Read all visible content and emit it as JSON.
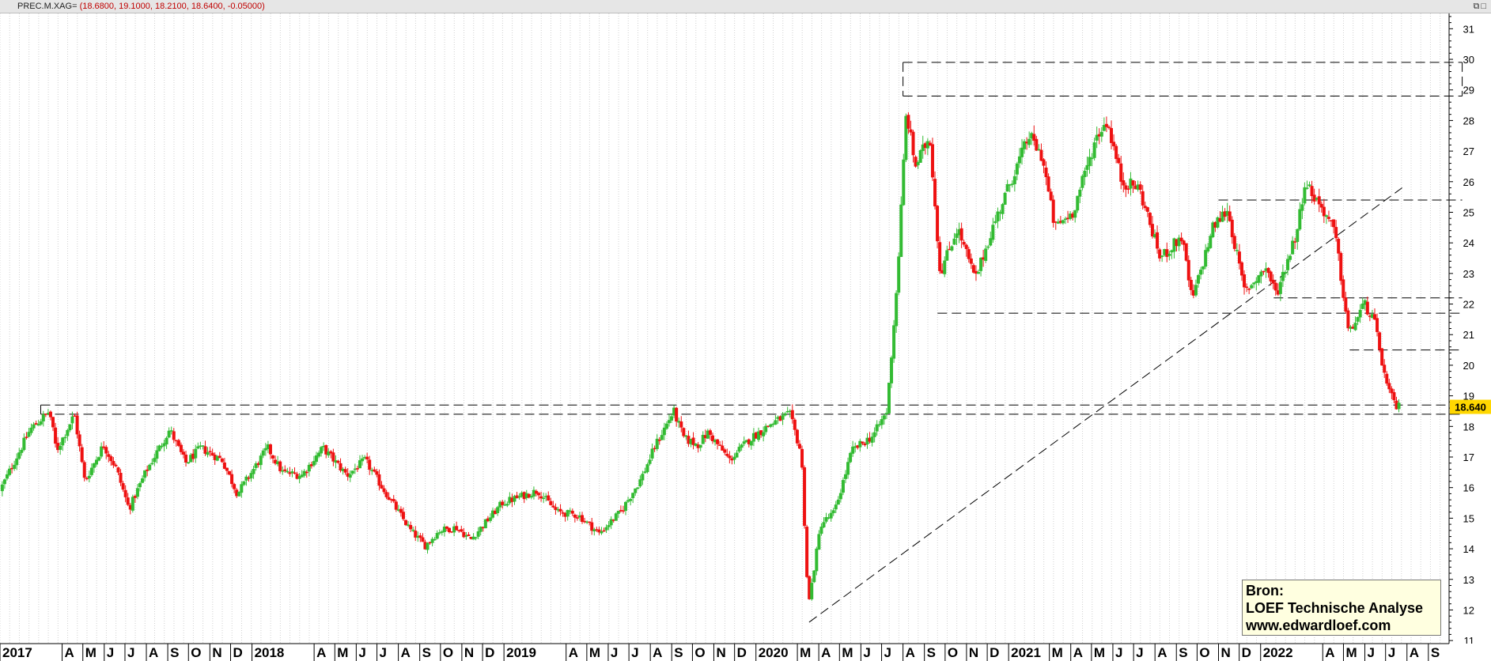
{
  "header": {
    "symbol": "PREC.M.XAG=",
    "ohlc": "(18.6800, 19.1000, 18.2100, 18.6400, -0.05000)"
  },
  "window_buttons": {
    "icons": [
      "restore-icon",
      "maximize-icon"
    ]
  },
  "source": {
    "line1": "Bron:",
    "line2": "LOEF Technische Analyse",
    "line3": "www.edwardloef.com"
  },
  "colors": {
    "up": "#33bb33",
    "down": "#ee1111",
    "last_price_badge": "#ffd700",
    "grid": "#d0d0d0"
  },
  "chart_data": {
    "type": "candlestick",
    "symbol": "PREC.M.XAG=",
    "last_price": 18.64,
    "last_price_label": "18.640",
    "y_axis": {
      "position": "right",
      "ticks": [
        11,
        12,
        13,
        14,
        15,
        16,
        17,
        18,
        19,
        20,
        21,
        22,
        23,
        24,
        25,
        26,
        27,
        28,
        29,
        30,
        31
      ],
      "range": [
        10.9,
        31.5
      ]
    },
    "x_axis": {
      "period": [
        "2017-01-01",
        "2022-09-30"
      ],
      "month_labels": [
        {
          "month": "2017-01",
          "label": "2017"
        },
        {
          "month": "2017-04",
          "label": "A"
        },
        {
          "month": "2017-05",
          "label": "M"
        },
        {
          "month": "2017-06",
          "label": "J"
        },
        {
          "month": "2017-07",
          "label": "J"
        },
        {
          "month": "2017-08",
          "label": "A"
        },
        {
          "month": "2017-09",
          "label": "S"
        },
        {
          "month": "2017-10",
          "label": "O"
        },
        {
          "month": "2017-11",
          "label": "N"
        },
        {
          "month": "2017-12",
          "label": "D"
        },
        {
          "month": "2018-01",
          "label": "2018"
        },
        {
          "month": "2018-04",
          "label": "A"
        },
        {
          "month": "2018-05",
          "label": "M"
        },
        {
          "month": "2018-06",
          "label": "J"
        },
        {
          "month": "2018-07",
          "label": "J"
        },
        {
          "month": "2018-08",
          "label": "A"
        },
        {
          "month": "2018-09",
          "label": "S"
        },
        {
          "month": "2018-10",
          "label": "O"
        },
        {
          "month": "2018-11",
          "label": "N"
        },
        {
          "month": "2018-12",
          "label": "D"
        },
        {
          "month": "2019-01",
          "label": "2019"
        },
        {
          "month": "2019-04",
          "label": "A"
        },
        {
          "month": "2019-05",
          "label": "M"
        },
        {
          "month": "2019-06",
          "label": "J"
        },
        {
          "month": "2019-07",
          "label": "J"
        },
        {
          "month": "2019-08",
          "label": "A"
        },
        {
          "month": "2019-09",
          "label": "S"
        },
        {
          "month": "2019-10",
          "label": "O"
        },
        {
          "month": "2019-11",
          "label": "N"
        },
        {
          "month": "2019-12",
          "label": "D"
        },
        {
          "month": "2020-01",
          "label": "2020"
        },
        {
          "month": "2020-03",
          "label": "M"
        },
        {
          "month": "2020-04",
          "label": "A"
        },
        {
          "month": "2020-05",
          "label": "M"
        },
        {
          "month": "2020-06",
          "label": "J"
        },
        {
          "month": "2020-07",
          "label": "J"
        },
        {
          "month": "2020-08",
          "label": "A"
        },
        {
          "month": "2020-09",
          "label": "S"
        },
        {
          "month": "2020-10",
          "label": "O"
        },
        {
          "month": "2020-11",
          "label": "N"
        },
        {
          "month": "2020-12",
          "label": "D"
        },
        {
          "month": "2021-01",
          "label": "2021"
        },
        {
          "month": "2021-03",
          "label": "M"
        },
        {
          "month": "2021-04",
          "label": "A"
        },
        {
          "month": "2021-05",
          "label": "M"
        },
        {
          "month": "2021-06",
          "label": "J"
        },
        {
          "month": "2021-07",
          "label": "J"
        },
        {
          "month": "2021-08",
          "label": "A"
        },
        {
          "month": "2021-09",
          "label": "S"
        },
        {
          "month": "2021-10",
          "label": "O"
        },
        {
          "month": "2021-11",
          "label": "N"
        },
        {
          "month": "2021-12",
          "label": "D"
        },
        {
          "month": "2022-01",
          "label": "2022"
        },
        {
          "month": "2022-04",
          "label": "A"
        },
        {
          "month": "2022-05",
          "label": "M"
        },
        {
          "month": "2022-06",
          "label": "J"
        },
        {
          "month": "2022-07",
          "label": "J"
        },
        {
          "month": "2022-08",
          "label": "A"
        },
        {
          "month": "2022-09",
          "label": "S"
        }
      ]
    },
    "price_path": [
      [
        "2017-01-02",
        15.9
      ],
      [
        "2017-02-15",
        17.9
      ],
      [
        "2017-03-15",
        18.5
      ],
      [
        "2017-03-25",
        17.2
      ],
      [
        "2017-04-20",
        18.4
      ],
      [
        "2017-05-05",
        16.2
      ],
      [
        "2017-06-01",
        17.4
      ],
      [
        "2017-06-20",
        16.6
      ],
      [
        "2017-07-08",
        15.3
      ],
      [
        "2017-08-01",
        16.5
      ],
      [
        "2017-09-05",
        17.9
      ],
      [
        "2017-09-28",
        16.8
      ],
      [
        "2017-10-20",
        17.3
      ],
      [
        "2017-11-20",
        16.9
      ],
      [
        "2017-12-12",
        15.8
      ],
      [
        "2018-01-25",
        17.3
      ],
      [
        "2018-02-15",
        16.5
      ],
      [
        "2018-03-15",
        16.4
      ],
      [
        "2018-04-15",
        17.3
      ],
      [
        "2018-05-20",
        16.4
      ],
      [
        "2018-06-15",
        16.9
      ],
      [
        "2018-07-10",
        16.0
      ],
      [
        "2018-08-20",
        14.6
      ],
      [
        "2018-09-10",
        14.1
      ],
      [
        "2018-10-01",
        14.6
      ],
      [
        "2018-10-25",
        14.7
      ],
      [
        "2018-11-15",
        14.3
      ],
      [
        "2018-12-31",
        15.5
      ],
      [
        "2019-02-20",
        15.9
      ],
      [
        "2019-03-20",
        15.2
      ],
      [
        "2019-04-20",
        15.1
      ],
      [
        "2019-05-20",
        14.5
      ],
      [
        "2019-06-20",
        15.2
      ],
      [
        "2019-07-20",
        16.3
      ],
      [
        "2019-08-10",
        17.4
      ],
      [
        "2019-09-05",
        18.5
      ],
      [
        "2019-09-20",
        17.6
      ],
      [
        "2019-10-10",
        17.4
      ],
      [
        "2019-10-25",
        17.8
      ],
      [
        "2019-11-25",
        16.9
      ],
      [
        "2019-12-25",
        17.6
      ],
      [
        "2020-01-25",
        18.1
      ],
      [
        "2020-02-20",
        18.4
      ],
      [
        "2020-03-08",
        17.1
      ],
      [
        "2020-03-18",
        12.1
      ],
      [
        "2020-04-05",
        14.8
      ],
      [
        "2020-04-25",
        15.2
      ],
      [
        "2020-05-20",
        17.2
      ],
      [
        "2020-06-20",
        17.7
      ],
      [
        "2020-07-10",
        18.5
      ],
      [
        "2020-07-25",
        22.8
      ],
      [
        "2020-08-07",
        28.3
      ],
      [
        "2020-08-20",
        26.5
      ],
      [
        "2020-09-10",
        27.5
      ],
      [
        "2020-09-25",
        23.0
      ],
      [
        "2020-10-20",
        24.5
      ],
      [
        "2020-11-15",
        22.8
      ],
      [
        "2020-12-10",
        24.5
      ],
      [
        "2021-01-05",
        26.0
      ],
      [
        "2021-02-01",
        27.5
      ],
      [
        "2021-02-20",
        26.8
      ],
      [
        "2021-03-10",
        24.5
      ],
      [
        "2021-04-05",
        25.0
      ],
      [
        "2021-05-10",
        27.5
      ],
      [
        "2021-05-25",
        28.0
      ],
      [
        "2021-06-15",
        26.0
      ],
      [
        "2021-07-10",
        25.8
      ],
      [
        "2021-08-10",
        23.5
      ],
      [
        "2021-09-10",
        24.2
      ],
      [
        "2021-09-25",
        22.1
      ],
      [
        "2021-10-25",
        24.5
      ],
      [
        "2021-11-15",
        25.1
      ],
      [
        "2021-12-10",
        22.4
      ],
      [
        "2022-01-10",
        23.2
      ],
      [
        "2022-01-25",
        22.3
      ],
      [
        "2022-02-25",
        24.5
      ],
      [
        "2022-03-07",
        26.0
      ],
      [
        "2022-04-05",
        25.0
      ],
      [
        "2022-04-20",
        24.3
      ],
      [
        "2022-05-10",
        21.0
      ],
      [
        "2022-06-01",
        22.0
      ],
      [
        "2022-06-15",
        21.5
      ],
      [
        "2022-07-05",
        19.2
      ],
      [
        "2022-07-18",
        18.64
      ]
    ],
    "annotation_lines": [
      {
        "kind": "trendline",
        "from": [
          "2020-03-18",
          11.6
        ],
        "to": [
          "2022-07-25",
          25.8
        ]
      },
      {
        "kind": "horizontal",
        "price": 29.9,
        "from": "2020-08-01",
        "to": "2022-10-20"
      },
      {
        "kind": "horizontal",
        "price": 28.8,
        "from": "2020-08-01",
        "to": "2022-10-20"
      },
      {
        "kind": "horizontal",
        "price": 25.4,
        "from": "2021-11-01",
        "to": "2022-10-20"
      },
      {
        "kind": "horizontal",
        "price": 22.2,
        "from": "2022-01-20",
        "to": "2022-10-20"
      },
      {
        "kind": "horizontal",
        "price": 21.7,
        "from": "2020-09-20",
        "to": "2022-10-20"
      },
      {
        "kind": "horizontal",
        "price": 20.5,
        "from": "2022-05-10",
        "to": "2022-10-20"
      },
      {
        "kind": "horizontal",
        "price": 18.7,
        "from": "2017-03-01",
        "to": "2022-10-20"
      },
      {
        "kind": "horizontal",
        "price": 18.4,
        "from": "2017-03-01",
        "to": "2022-10-20"
      },
      {
        "kind": "vertical_bracket",
        "date": "2020-08-01",
        "from": 29.9,
        "to": 28.8
      },
      {
        "kind": "vertical_bracket",
        "date": "2022-10-20",
        "from": 29.9,
        "to": 28.8
      },
      {
        "kind": "vertical_bracket",
        "date": "2017-03-01",
        "from": 18.7,
        "to": 18.4
      }
    ]
  }
}
